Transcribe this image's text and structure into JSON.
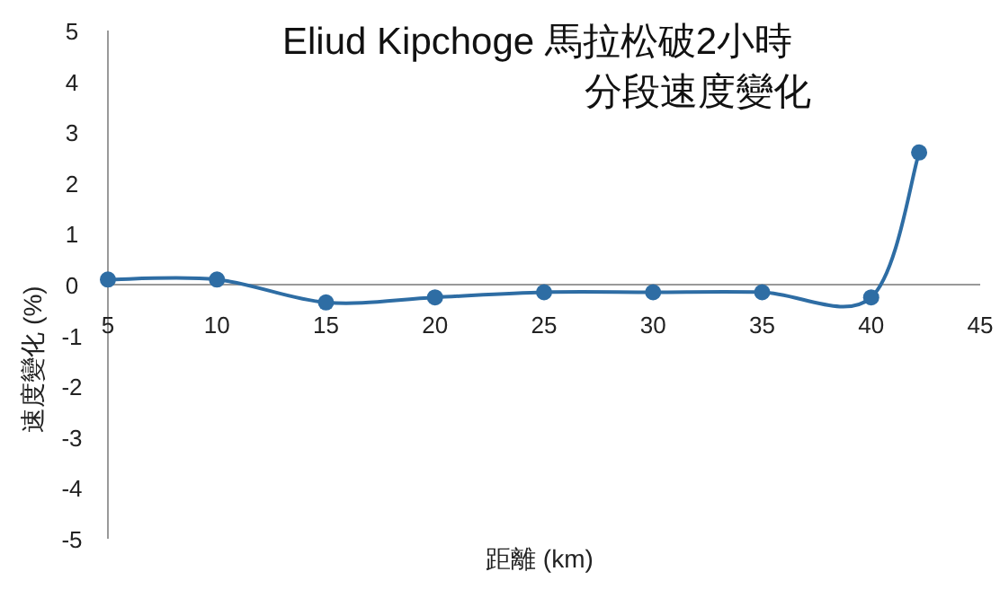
{
  "chart_data": {
    "type": "line",
    "title": "Eliud Kipchoge 馬拉松破2小時",
    "subtitle": "分段速度變化",
    "xlabel": "距離 (km)",
    "ylabel": "速度變化 (%)",
    "x": [
      5,
      10,
      15,
      20,
      25,
      30,
      35,
      40,
      42.2
    ],
    "series": [
      {
        "color": "#2e6da4",
        "values": [
          0.1,
          0.1,
          -0.35,
          -0.25,
          -0.15,
          -0.15,
          -0.15,
          -0.25,
          2.6
        ]
      }
    ],
    "xlim": [
      5,
      45
    ],
    "xticks": [
      5,
      10,
      15,
      20,
      25,
      30,
      35,
      40,
      45
    ],
    "ylim": [
      -5,
      5
    ],
    "yticks": [
      -5,
      -4,
      -3,
      -2,
      -1,
      0,
      1,
      2,
      3,
      4,
      5
    ],
    "marker": "circle",
    "line_style": "solid",
    "grid": false
  }
}
